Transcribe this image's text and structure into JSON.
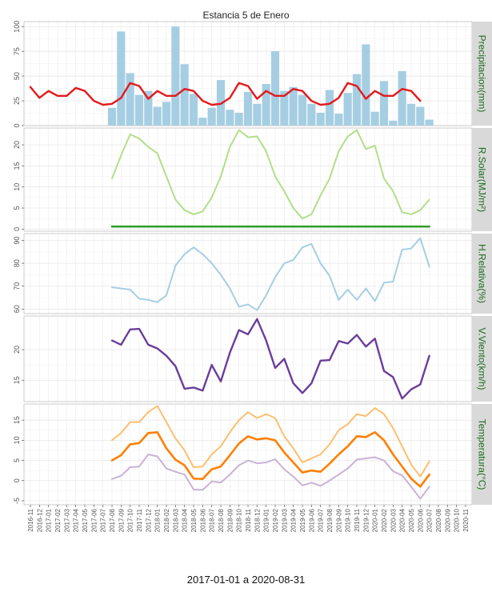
{
  "title": "Estancia 5 de Enero",
  "x_axis_title": "2017-01-01 a 2020-08-31",
  "colors": {
    "precip_bar": "#a6cee3",
    "precip_line": "#e31a1c",
    "solar": "#b2df8a",
    "solar_base": "#33a02c",
    "humidity": "#a6cee3",
    "wind": "#6a3d9a",
    "tmax": "#fdbf6f",
    "tmean": "#ff7f00",
    "tmin": "#cab2d6",
    "strip": "#d9d9d9",
    "strip_text": "#1a6e1a"
  },
  "chart_data": {
    "type": "line",
    "x_ticks": [
      "2016-11",
      "2016-12",
      "2017-01",
      "2017-02",
      "2017-03",
      "2017-04",
      "2017-05",
      "2017-06",
      "2017-07",
      "2017-08",
      "2017-09",
      "2017-10",
      "2017-11",
      "2017-12",
      "2018-01",
      "2018-02",
      "2018-03",
      "2018-04",
      "2018-05",
      "2018-06",
      "2018-07",
      "2018-08",
      "2018-09",
      "2018-10",
      "2018-11",
      "2018-12",
      "2019-01",
      "2019-02",
      "2019-03",
      "2019-04",
      "2019-05",
      "2019-06",
      "2019-07",
      "2019-08",
      "2019-09",
      "2019-10",
      "2019-11",
      "2019-12",
      "2020-01",
      "2020-02",
      "2020-03",
      "2020-04",
      "2020-05",
      "2020-06",
      "2020-07",
      "2020-08",
      "2020-09",
      "2020-10",
      "2020-11"
    ],
    "panels": [
      {
        "label": "Precipitacion(mm)",
        "ylim": [
          0,
          105
        ],
        "yticks": [
          "0",
          "25",
          "50",
          "75",
          "100"
        ],
        "ytick_values": [
          0,
          25,
          50,
          75,
          100
        ],
        "series": [
          {
            "kind": "bar",
            "start": 9,
            "values": [
              18,
              95,
              53,
              31,
              35,
              19,
              24,
              100,
              62,
              32,
              8,
              18,
              46,
              16,
              13,
              34,
              22,
              42,
              75,
              35,
              39,
              31,
              22,
              13,
              36,
              12,
              33,
              52,
              82,
              14,
              45,
              5,
              55,
              22,
              19,
              6
            ]
          },
          {
            "kind": "line",
            "start": 0,
            "values": [
              39,
              28,
              35,
              30,
              30,
              38,
              35,
              25,
              21,
              22,
              28,
              43,
              40,
              27,
              35,
              30,
              30,
              37,
              35,
              25,
              21,
              22,
              28,
              43,
              40,
              27,
              35,
              30,
              30,
              37,
              35,
              25,
              21,
              22,
              28,
              43,
              40,
              27,
              35,
              30,
              30,
              37,
              35,
              25
            ]
          }
        ]
      },
      {
        "label": "R.Solar(MJ/m²)",
        "ylim": [
          -0.5,
          24
        ],
        "yticks": [
          "0",
          "5",
          "10",
          "15",
          "20"
        ],
        "ytick_values": [
          0,
          5,
          10,
          15,
          20
        ],
        "series": [
          {
            "kind": "line",
            "start": 9,
            "values": [
              12,
              17.5,
              22.5,
              21.5,
              19.5,
              18,
              12.5,
              7,
              4.5,
              3.5,
              4.2,
              7.5,
              12.5,
              19.5,
              23.5,
              21.8,
              22,
              18.5,
              12.5,
              9,
              5,
              2.5,
              3.5,
              8,
              12,
              18.5,
              22,
              23.5,
              19,
              19.8,
              12,
              9,
              4,
              3.5,
              4.5,
              7
            ]
          },
          {
            "kind": "line",
            "start": 9,
            "values": [
              0.6,
              0.6,
              0.6,
              0.6,
              0.6,
              0.6,
              0.6,
              0.6,
              0.6,
              0.6,
              0.6,
              0.6,
              0.6,
              0.6,
              0.6,
              0.6,
              0.6,
              0.6,
              0.6,
              0.6,
              0.6,
              0.6,
              0.6,
              0.6,
              0.6,
              0.6,
              0.6,
              0.6,
              0.6,
              0.6,
              0.6,
              0.6,
              0.6,
              0.6,
              0.6,
              0.6
            ]
          }
        ]
      },
      {
        "label": "H.Relativa(%)",
        "ylim": [
          58,
          93
        ],
        "yticks": [
          "60",
          "70",
          "80",
          "90"
        ],
        "ytick_values": [
          60,
          70,
          80,
          90
        ],
        "series": [
          {
            "kind": "line",
            "start": 9,
            "values": [
              69.5,
              69,
              68.5,
              64.5,
              64,
              63,
              66,
              79,
              84,
              87,
              84,
              80,
              75,
              69,
              61,
              62,
              59.5,
              66,
              74,
              80,
              81.5,
              87,
              88.5,
              80,
              74.5,
              64,
              68.5,
              64,
              69,
              63.5,
              71.5,
              72,
              86,
              86.5,
              91,
              78.5
            ]
          }
        ]
      },
      {
        "label": "V.Viento(km/h)",
        "ylim": [
          11.5,
          25.5
        ],
        "yticks": [
          "15",
          "20"
        ],
        "ytick_values": [
          15,
          20
        ],
        "series": [
          {
            "kind": "line",
            "start": 9,
            "values": [
              21.5,
              20.8,
              23.3,
              23.4,
              20.8,
              20.2,
              19,
              17.3,
              13.6,
              13.8,
              13.3,
              17.5,
              14.8,
              19.5,
              23.2,
              22.5,
              25,
              21.5,
              17,
              18.5,
              14.5,
              12.9,
              14.5,
              18.2,
              18.3,
              21.4,
              21,
              22.4,
              20.5,
              21.8,
              16.5,
              15.5,
              12,
              13.5,
              14.3,
              19
            ]
          }
        ]
      },
      {
        "label": "Temperatura(°C)",
        "ylim": [
          -6,
          19
        ],
        "yticks": [
          "-5",
          "0",
          "5",
          "10",
          "15"
        ],
        "ytick_values": [
          -5,
          0,
          5,
          10,
          15
        ],
        "series": [
          {
            "kind": "line",
            "start": 9,
            "values": [
              10,
              11.8,
              14.5,
              14.5,
              17,
              18.5,
              14.5,
              10.5,
              7.5,
              3.3,
              3.5,
              6.5,
              8.5,
              12,
              15,
              17,
              15.5,
              16.5,
              15.5,
              11,
              8,
              4.5,
              5.5,
              6.5,
              9,
              12.5,
              14,
              16.5,
              16,
              18,
              16.5,
              13,
              8.5,
              4,
              1,
              4.8
            ]
          },
          {
            "kind": "line",
            "start": 9,
            "values": [
              5,
              6.3,
              9,
              9.3,
              11.8,
              12,
              8,
              5.2,
              3.8,
              0.5,
              0.4,
              2.8,
              3.5,
              6.3,
              9.2,
              11,
              10.2,
              10.5,
              10,
              7,
              4.5,
              2,
              2.5,
              2.2,
              4.2,
              6.5,
              8.5,
              11,
              10.8,
              12,
              10,
              6.5,
              3.5,
              0.5,
              -1.5,
              1.5
            ]
          },
          {
            "kind": "line",
            "start": 9,
            "values": [
              0.4,
              1.2,
              3.3,
              3.5,
              6.5,
              6,
              3,
              2.2,
              1.5,
              -2.2,
              -2.3,
              -0.2,
              -0.5,
              1.5,
              3.8,
              5,
              4.3,
              4.5,
              5.3,
              2.8,
              1,
              -1.2,
              -0.5,
              -1.3,
              0,
              1.5,
              3,
              5.2,
              5.5,
              5.8,
              5,
              2.3,
              1.3,
              -1.5,
              -4.5,
              -1.5
            ]
          }
        ]
      }
    ]
  }
}
